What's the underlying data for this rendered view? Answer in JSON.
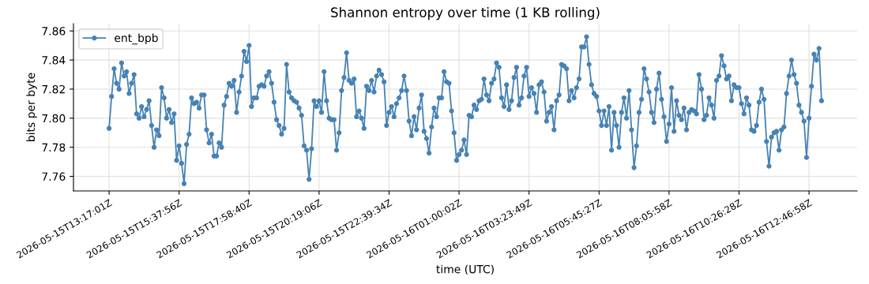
{
  "chart_data": {
    "type": "line",
    "title": "Shannon entropy over time (1 KB rolling)",
    "xlabel": "time (UTC)",
    "ylabel": "bits per byte",
    "ylim": [
      7.75,
      7.865
    ],
    "categories": [
      "2026-05-15T13:17:01Z",
      null,
      null,
      null,
      null,
      null,
      null,
      null,
      null,
      null,
      null,
      null,
      null,
      null,
      null,
      null,
      null,
      null,
      null,
      null,
      null,
      null,
      null,
      null,
      null,
      null,
      null,
      null,
      "2026-05-15T15:37:56Z",
      null,
      null,
      null,
      null,
      null,
      null,
      null,
      null,
      null,
      null,
      null,
      null,
      null,
      null,
      null,
      null,
      null,
      null,
      null,
      null,
      null,
      null,
      null,
      null,
      null,
      null,
      null,
      "2026-05-15T17:58:40Z",
      null,
      null,
      null,
      null,
      null,
      null,
      null,
      null,
      null,
      null,
      null,
      null,
      null,
      null,
      null,
      null,
      null,
      null,
      null,
      null,
      null,
      null,
      null,
      null,
      null,
      null,
      null,
      "2026-05-15T20:19:06Z",
      null,
      null,
      null,
      null,
      null,
      null,
      null,
      null,
      null,
      null,
      null,
      null,
      null,
      null,
      null,
      null,
      null,
      null,
      null,
      null,
      null,
      null,
      null,
      null,
      null,
      null,
      null,
      "2026-05-15T22:39:34Z",
      null,
      null,
      null,
      null,
      null,
      null,
      null,
      null,
      null,
      null,
      null,
      null,
      null,
      null,
      null,
      null,
      null,
      null,
      null,
      null,
      null,
      null,
      null,
      null,
      null,
      null,
      null,
      "2026-05-16T01:00:02Z",
      null,
      null,
      null,
      null,
      null,
      null,
      null,
      null,
      null,
      null,
      null,
      null,
      null,
      null,
      null,
      null,
      null,
      null,
      null,
      null,
      null,
      null,
      null,
      null,
      null,
      null,
      null,
      "2026-05-16T03:23:49Z",
      null,
      null,
      null,
      null,
      null,
      null,
      null,
      null,
      null,
      null,
      null,
      null,
      null,
      null,
      null,
      null,
      null,
      null,
      null,
      null,
      null,
      null,
      null,
      null,
      null,
      null,
      null,
      "2026-05-16T05:45:27Z",
      null,
      null,
      null,
      null,
      null,
      null,
      null,
      null,
      null,
      null,
      null,
      null,
      null,
      null,
      null,
      null,
      null,
      null,
      null,
      null,
      null,
      null,
      null,
      null,
      null,
      null,
      null,
      "2026-05-16T08:05:58Z",
      null,
      null,
      null,
      null,
      null,
      null,
      null,
      null,
      null,
      null,
      null,
      null,
      null,
      null,
      null,
      null,
      null,
      null,
      null,
      null,
      null,
      null,
      null,
      null,
      null,
      null,
      null,
      "2026-05-16T10:26:28Z",
      null,
      null,
      null,
      null,
      null,
      null,
      null,
      null,
      null,
      null,
      null,
      null,
      null,
      null,
      null,
      null,
      null,
      null,
      null,
      null,
      null,
      null,
      null,
      null,
      null,
      null,
      null,
      "2026-05-16T12:46:58Z",
      null,
      null,
      null,
      null,
      null
    ],
    "yticks": [
      7.76,
      7.78,
      {
        "value": 7.8,
        "label": "7.80"
      },
      7.82,
      7.84,
      7.86
    ],
    "grid": true,
    "legend": "upper left",
    "marker": "circle",
    "line_style": "solid",
    "series": [
      {
        "name": "ent_bpb",
        "color": "#4682b4",
        "values": [
          7.793,
          7.815,
          7.834,
          7.824,
          7.82,
          7.838,
          7.829,
          7.832,
          7.817,
          7.824,
          7.83,
          7.803,
          7.8,
          7.808,
          7.801,
          7.806,
          7.812,
          7.795,
          7.78,
          7.792,
          7.788,
          7.821,
          7.814,
          7.8,
          7.806,
          7.797,
          7.803,
          7.771,
          7.781,
          7.769,
          7.755,
          7.782,
          7.789,
          7.814,
          7.81,
          7.811,
          7.807,
          7.816,
          7.816,
          7.792,
          7.783,
          7.789,
          7.774,
          7.774,
          7.783,
          7.78,
          7.809,
          7.815,
          7.824,
          7.822,
          7.826,
          7.804,
          7.818,
          7.829,
          7.846,
          7.839,
          7.85,
          7.808,
          7.814,
          7.814,
          7.822,
          7.823,
          7.822,
          7.829,
          7.832,
          7.824,
          7.811,
          7.799,
          7.795,
          7.789,
          7.793,
          7.837,
          7.818,
          7.814,
          7.812,
          7.811,
          7.807,
          7.802,
          7.781,
          7.778,
          7.758,
          7.779,
          7.812,
          7.808,
          7.812,
          7.804,
          7.832,
          7.812,
          7.8,
          7.799,
          7.799,
          7.778,
          7.79,
          7.819,
          7.828,
          7.845,
          7.826,
          7.824,
          7.827,
          7.801,
          7.805,
          7.8,
          7.793,
          7.822,
          7.819,
          7.826,
          7.818,
          7.829,
          7.833,
          7.83,
          7.825,
          7.795,
          7.804,
          7.808,
          7.801,
          7.81,
          7.814,
          7.819,
          7.829,
          7.819,
          7.798,
          7.788,
          7.801,
          7.792,
          7.807,
          7.816,
          7.791,
          7.786,
          7.776,
          7.794,
          7.807,
          7.801,
          7.814,
          7.814,
          7.832,
          7.825,
          7.824,
          7.805,
          7.79,
          7.771,
          7.775,
          7.778,
          7.785,
          7.775,
          7.802,
          7.801,
          7.809,
          7.806,
          7.812,
          7.813,
          7.827,
          7.816,
          7.812,
          7.824,
          7.827,
          7.838,
          7.835,
          7.814,
          7.808,
          7.823,
          7.806,
          7.812,
          7.828,
          7.835,
          7.809,
          7.814,
          7.829,
          7.835,
          7.815,
          7.821,
          7.817,
          7.804,
          7.823,
          7.825,
          7.818,
          7.798,
          7.804,
          7.808,
          7.792,
          7.812,
          7.816,
          7.837,
          7.836,
          7.834,
          7.812,
          7.819,
          7.814,
          7.821,
          7.827,
          7.849,
          7.849,
          7.856,
          7.837,
          7.823,
          7.817,
          7.815,
          7.805,
          7.795,
          7.805,
          7.795,
          7.808,
          7.778,
          7.804,
          7.795,
          7.78,
          7.804,
          7.814,
          7.8,
          7.819,
          7.792,
          7.766,
          7.781,
          7.804,
          7.813,
          7.834,
          7.827,
          7.818,
          7.804,
          7.797,
          7.82,
          7.831,
          7.813,
          7.801,
          7.784,
          7.796,
          7.821,
          7.791,
          7.812,
          7.802,
          7.799,
          7.807,
          7.792,
          7.804,
          7.806,
          7.805,
          7.803,
          7.83,
          7.82,
          7.799,
          7.802,
          7.814,
          7.809,
          7.8,
          7.826,
          7.829,
          7.843,
          7.836,
          7.827,
          7.829,
          7.812,
          7.823,
          7.821,
          7.821,
          7.81,
          7.803,
          7.814,
          7.809,
          7.792,
          7.791,
          7.795,
          7.811,
          7.82,
          7.813,
          7.784,
          7.767,
          7.787,
          7.79,
          7.791,
          7.778,
          7.792,
          7.794,
          7.817,
          7.829,
          7.84,
          7.83,
          7.824,
          7.809,
          7.804,
          7.798,
          7.773,
          7.8,
          7.822,
          7.844,
          7.84,
          7.848,
          7.812
        ]
      }
    ]
  }
}
